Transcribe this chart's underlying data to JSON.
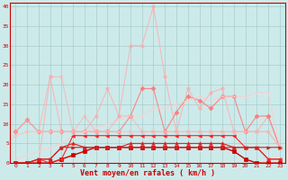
{
  "xlabel": "Vent moyen/en rafales ( km/h )",
  "xlim": [
    -0.5,
    23.5
  ],
  "ylim": [
    0,
    41
  ],
  "yticks": [
    0,
    5,
    10,
    15,
    20,
    25,
    30,
    35,
    40
  ],
  "xticks": [
    0,
    1,
    2,
    3,
    4,
    5,
    6,
    7,
    8,
    9,
    10,
    11,
    12,
    13,
    14,
    15,
    16,
    17,
    18,
    19,
    20,
    21,
    22,
    23
  ],
  "background_color": "#cdeaea",
  "grid_color": "#aacccc",
  "lines": [
    {
      "x": [
        0,
        1,
        2,
        3,
        4,
        5,
        6,
        7,
        8,
        9,
        10,
        11,
        12,
        13,
        14,
        15,
        16,
        17,
        18,
        19,
        20,
        21,
        22,
        23
      ],
      "y": [
        0,
        0,
        0,
        22,
        8,
        8,
        8,
        12,
        19,
        12,
        30,
        30,
        40,
        22,
        8,
        19,
        14,
        18,
        19,
        8,
        8,
        8,
        12,
        4
      ],
      "color": "#ffaaaa",
      "linewidth": 0.8,
      "marker": "o",
      "markersize": 2.5,
      "alpha": 0.75
    },
    {
      "x": [
        0,
        1,
        2,
        3,
        4,
        5,
        6,
        7,
        8,
        9,
        10,
        11,
        12,
        13,
        14,
        15,
        16,
        17,
        18,
        19,
        20,
        21,
        22,
        23
      ],
      "y": [
        8,
        11,
        8,
        8,
        8,
        8,
        8,
        8,
        8,
        8,
        12,
        19,
        19,
        8,
        13,
        17,
        16,
        14,
        17,
        17,
        8,
        12,
        12,
        4
      ],
      "color": "#ff7777",
      "linewidth": 0.8,
      "marker": "D",
      "markersize": 2.5,
      "alpha": 0.85
    },
    {
      "x": [
        0,
        1,
        2,
        3,
        4,
        5,
        6,
        7,
        8,
        9,
        10,
        11,
        12,
        13,
        14,
        15,
        16,
        17,
        18,
        19,
        20,
        21,
        22,
        23
      ],
      "y": [
        7,
        8,
        8,
        8,
        8,
        8,
        8,
        8,
        8,
        8,
        8,
        8,
        8,
        8,
        8,
        8,
        8,
        8,
        8,
        8,
        8,
        8,
        8,
        4
      ],
      "color": "#ffbbbb",
      "linewidth": 0.8,
      "marker": ">",
      "markersize": 2.5,
      "alpha": 0.8
    },
    {
      "x": [
        0,
        1,
        2,
        3,
        4,
        5,
        6,
        7,
        8,
        9,
        10,
        11,
        12,
        13,
        14,
        15,
        16,
        17,
        18,
        19,
        20,
        21,
        22,
        23
      ],
      "y": [
        1,
        2,
        3,
        4,
        5,
        7,
        8,
        9,
        10,
        11,
        12,
        12,
        14,
        14,
        15,
        16,
        17,
        16,
        17,
        17,
        17,
        18,
        18,
        4
      ],
      "color": "#ffcccc",
      "linewidth": 0.8,
      "marker": "+",
      "markersize": 3,
      "alpha": 0.75
    },
    {
      "x": [
        0,
        1,
        2,
        3,
        4,
        5,
        6,
        7,
        8,
        9,
        10,
        11,
        12,
        13,
        14,
        15,
        16,
        17,
        18,
        19,
        20,
        21,
        22,
        23
      ],
      "y": [
        8,
        11,
        8,
        22,
        22,
        8,
        12,
        8,
        8,
        12,
        12,
        8,
        8,
        8,
        8,
        8,
        8,
        8,
        8,
        8,
        8,
        8,
        8,
        4
      ],
      "color": "#ffaaaa",
      "linewidth": 0.8,
      "marker": "x",
      "markersize": 2.5,
      "alpha": 0.65
    },
    {
      "x": [
        0,
        1,
        2,
        3,
        4,
        5,
        6,
        7,
        8,
        9,
        10,
        11,
        12,
        13,
        14,
        15,
        16,
        17,
        18,
        19,
        20,
        21,
        22,
        23
      ],
      "y": [
        0,
        0,
        0,
        0,
        1,
        2,
        3,
        4,
        4,
        4,
        4,
        4,
        4,
        4,
        4,
        4,
        4,
        4,
        4,
        3,
        1,
        0,
        0,
        0
      ],
      "color": "#cc0000",
      "linewidth": 1.0,
      "marker": "s",
      "markersize": 2.5,
      "alpha": 1.0
    },
    {
      "x": [
        0,
        1,
        2,
        3,
        4,
        5,
        6,
        7,
        8,
        9,
        10,
        11,
        12,
        13,
        14,
        15,
        16,
        17,
        18,
        19,
        20,
        21,
        22,
        23
      ],
      "y": [
        0,
        0,
        1,
        1,
        4,
        5,
        4,
        4,
        4,
        4,
        5,
        5,
        5,
        5,
        5,
        5,
        5,
        5,
        5,
        4,
        4,
        4,
        1,
        1
      ],
      "color": "#dd2222",
      "linewidth": 0.8,
      "marker": "^",
      "markersize": 2.5,
      "alpha": 1.0
    },
    {
      "x": [
        0,
        1,
        2,
        3,
        4,
        5,
        6,
        7,
        8,
        9,
        10,
        11,
        12,
        13,
        14,
        15,
        16,
        17,
        18,
        19,
        20,
        21,
        22,
        23
      ],
      "y": [
        0,
        0,
        1,
        0,
        1,
        7,
        7,
        7,
        7,
        7,
        7,
        7,
        7,
        7,
        7,
        7,
        7,
        7,
        7,
        7,
        4,
        4,
        1,
        1
      ],
      "color": "#ff2222",
      "linewidth": 0.8,
      "marker": "<",
      "markersize": 2.5,
      "alpha": 1.0
    },
    {
      "x": [
        0,
        1,
        2,
        3,
        4,
        5,
        6,
        7,
        8,
        9,
        10,
        11,
        12,
        13,
        14,
        15,
        16,
        17,
        18,
        19,
        20,
        21,
        22,
        23
      ],
      "y": [
        0,
        0,
        1,
        1,
        4,
        4,
        4,
        4,
        4,
        4,
        4,
        4,
        4,
        4,
        4,
        4,
        4,
        4,
        4,
        4,
        4,
        4,
        4,
        4
      ],
      "color": "#cc2222",
      "linewidth": 0.8,
      "marker": ">",
      "markersize": 2.5,
      "alpha": 1.0
    }
  ]
}
